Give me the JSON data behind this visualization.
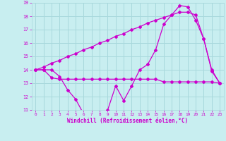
{
  "xlabel": "Windchill (Refroidissement éolien,°C)",
  "bg_color": "#c8eef0",
  "grid_color": "#a8d8dc",
  "line_color": "#cc00cc",
  "x_values": [
    0,
    1,
    2,
    3,
    4,
    5,
    6,
    7,
    8,
    9,
    10,
    11,
    12,
    13,
    14,
    15,
    16,
    17,
    18,
    19,
    20,
    21,
    22,
    23
  ],
  "line1": [
    14.0,
    14.0,
    14.0,
    13.5,
    12.5,
    11.8,
    10.7,
    10.6,
    10.7,
    11.0,
    12.8,
    11.7,
    12.8,
    14.0,
    14.4,
    15.5,
    17.4,
    18.1,
    18.8,
    18.7,
    17.7,
    16.3,
    13.9,
    13.0
  ],
  "line2": [
    14.0,
    14.0,
    13.4,
    13.3,
    13.3,
    13.3,
    13.3,
    13.3,
    13.3,
    13.3,
    13.3,
    13.3,
    13.3,
    13.3,
    13.3,
    13.3,
    13.1,
    13.1,
    13.1,
    13.1,
    13.1,
    13.1,
    13.1,
    13.0
  ],
  "line3": [
    14.0,
    14.2,
    14.5,
    14.7,
    15.0,
    15.2,
    15.5,
    15.7,
    16.0,
    16.2,
    16.5,
    16.7,
    17.0,
    17.2,
    17.5,
    17.7,
    17.9,
    18.1,
    18.3,
    18.3,
    18.1,
    16.3,
    14.0,
    13.0
  ],
  "ylim": [
    11,
    19
  ],
  "xlim": [
    -0.5,
    23.5
  ],
  "yticks": [
    11,
    12,
    13,
    14,
    15,
    16,
    17,
    18,
    19
  ],
  "xticks": [
    0,
    1,
    2,
    3,
    4,
    5,
    6,
    7,
    8,
    9,
    10,
    11,
    12,
    13,
    14,
    15,
    16,
    17,
    18,
    19,
    20,
    21,
    22,
    23
  ]
}
